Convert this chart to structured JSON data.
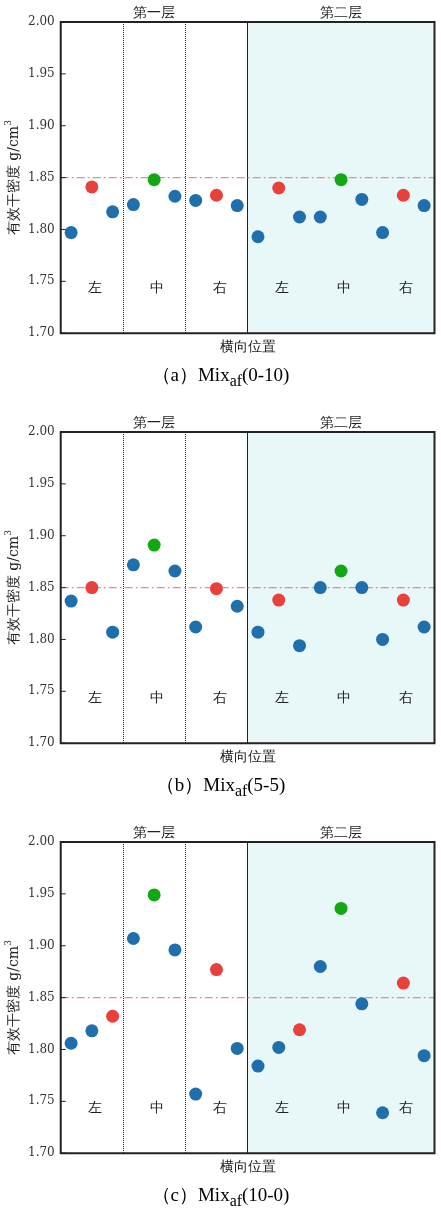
{
  "chart_data": [
    {
      "type": "scatter",
      "title": "（a）Mix$_{af}$(0-10)",
      "xlabel": "横向位置",
      "ylabel": "有效干密度 g/cm$^{3}$",
      "categories": [
        null,
        null,
        null,
        null,
        null,
        null,
        null,
        null,
        null,
        null,
        null,
        null,
        null,
        null,
        null,
        null,
        null,
        null
      ],
      "ylim": [
        1.7,
        2.0
      ],
      "yticks": [
        {
          "value": 1.7,
          "label": "1.70"
        },
        1.75,
        {
          "value": 1.8,
          "label": "1.80"
        },
        1.85,
        {
          "value": 1.9,
          "label": "1.90"
        },
        1.95,
        {
          "value": 2.0,
          "label": "2.00"
        }
      ],
      "tick_labels": "y",
      "grid": false,
      "marker": "circle",
      "series": [
        {
          "color": "#1f6fad",
          "values": [
            1.797,
            null,
            1.817,
            1.824,
            null,
            1.832,
            1.828,
            null,
            1.823,
            1.793,
            null,
            1.812,
            1.812,
            null,
            1.829,
            1.797,
            null,
            1.823
          ]
        },
        {
          "color": "#e8413c",
          "values": [
            null,
            1.841,
            null,
            null,
            null,
            null,
            null,
            1.833,
            null,
            null,
            1.84,
            null,
            null,
            null,
            null,
            null,
            1.833,
            null
          ]
        },
        {
          "color": "#12a812",
          "values": [
            null,
            null,
            null,
            null,
            1.848,
            null,
            null,
            null,
            null,
            null,
            null,
            null,
            null,
            1.848,
            null,
            null,
            null,
            null
          ]
        }
      ],
      "ref_lines": [
        {
          "axis": "y",
          "value": 1.85,
          "color": "#f08a8a",
          "line_style": "dashed"
        }
      ],
      "annotations": [
        "第一层",
        "第二层",
        "左",
        "中",
        "右",
        "左",
        "中",
        "右"
      ]
    },
    {
      "type": "scatter",
      "title": "（b）Mix$_{af}$(5-5)",
      "xlabel": "横向位置",
      "ylabel": "有效干密度 g/cm$^{3}$",
      "categories": [
        null,
        null,
        null,
        null,
        null,
        null,
        null,
        null,
        null,
        null,
        null,
        null,
        null,
        null,
        null,
        null,
        null,
        null
      ],
      "ylim": [
        1.7,
        2.0
      ],
      "yticks": [
        {
          "value": 1.7,
          "label": "1.70"
        },
        1.75,
        {
          "value": 1.8,
          "label": "1.80"
        },
        1.85,
        {
          "value": 1.9,
          "label": "1.90"
        },
        1.95,
        {
          "value": 2.0,
          "label": "2.00"
        }
      ],
      "tick_labels": "y",
      "grid": false,
      "marker": "circle",
      "series": [
        {
          "color": "#1f6fad",
          "values": [
            1.837,
            null,
            1.807,
            1.872,
            null,
            1.866,
            1.812,
            null,
            1.832,
            1.807,
            null,
            1.794,
            1.85,
            null,
            1.85,
            1.8,
            null,
            1.812
          ]
        },
        {
          "color": "#e8413c",
          "values": [
            null,
            1.85,
            null,
            null,
            null,
            null,
            null,
            1.849,
            null,
            null,
            1.838,
            null,
            null,
            null,
            null,
            null,
            1.838,
            null
          ]
        },
        {
          "color": "#12a812",
          "values": [
            null,
            null,
            null,
            null,
            1.891,
            null,
            null,
            null,
            null,
            null,
            null,
            null,
            null,
            1.866,
            null,
            null,
            null,
            null
          ]
        }
      ],
      "ref_lines": [
        {
          "axis": "y",
          "value": 1.85,
          "color": "#f08a8a",
          "line_style": "dashed"
        }
      ],
      "annotations": [
        "第一层",
        "第二层",
        "左",
        "中",
        "右",
        "左",
        "中",
        "右"
      ]
    },
    {
      "type": "scatter",
      "title": "（c）Mix$_{af}$(10-0)",
      "xlabel": "横向位置",
      "ylabel": "有效干密度 g/cm$^{3}$",
      "categories": [
        null,
        null,
        null,
        null,
        null,
        null,
        null,
        null,
        null,
        null,
        null,
        null,
        null,
        null,
        null,
        null,
        null,
        null
      ],
      "ylim": [
        1.7,
        2.0
      ],
      "yticks": [
        {
          "value": 1.7,
          "label": "1.70"
        },
        1.75,
        {
          "value": 1.8,
          "label": "1.80"
        },
        1.85,
        {
          "value": 1.9,
          "label": "1.90"
        },
        1.95,
        {
          "value": 2.0,
          "label": "2.00"
        }
      ],
      "tick_labels": "y",
      "grid": false,
      "marker": "circle",
      "series": [
        {
          "color": "#1f6fad",
          "values": [
            1.806,
            1.818,
            null,
            1.907,
            null,
            1.896,
            1.757,
            null,
            1.801,
            1.784,
            1.802,
            null,
            1.88,
            null,
            1.844,
            1.739,
            null,
            1.794
          ]
        },
        {
          "color": "#e8413c",
          "values": [
            null,
            null,
            1.832,
            null,
            null,
            null,
            null,
            1.877,
            null,
            null,
            null,
            1.819,
            null,
            null,
            null,
            null,
            1.864,
            null
          ]
        },
        {
          "color": "#12a812",
          "values": [
            null,
            null,
            null,
            null,
            1.949,
            null,
            null,
            null,
            null,
            null,
            null,
            null,
            null,
            1.936,
            null,
            null,
            null,
            null
          ]
        }
      ],
      "ref_lines": [
        {
          "axis": "y",
          "value": 1.85,
          "color": "#f08a8a",
          "line_style": "dashed"
        }
      ],
      "annotations": [
        "第一层",
        "第二层",
        "左",
        "中",
        "右",
        "左",
        "中",
        "右"
      ]
    }
  ]
}
